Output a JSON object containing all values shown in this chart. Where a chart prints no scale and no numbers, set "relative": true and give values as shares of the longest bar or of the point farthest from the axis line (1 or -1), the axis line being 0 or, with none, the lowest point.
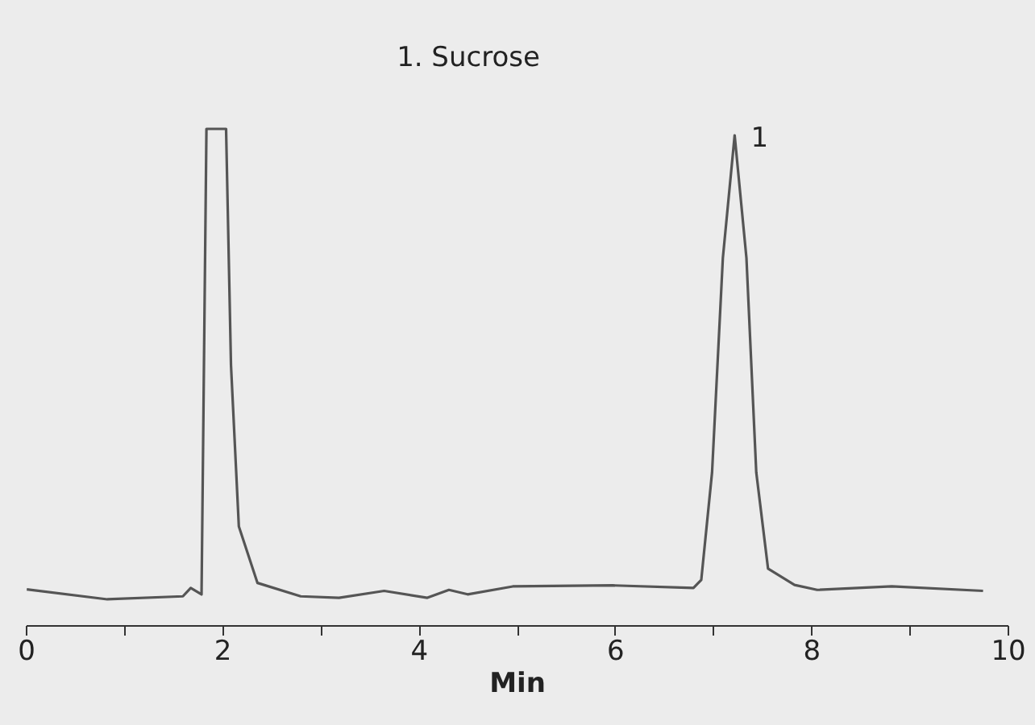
{
  "chart_data": {
    "type": "line",
    "title": "1.   Sucrose",
    "xlabel": "Min",
    "relative": true,
    "x": [
      0.01,
      0.83,
      1.6,
      1.68,
      1.79,
      1.84,
      2.04,
      2.09,
      2.17,
      2.36,
      2.8,
      3.19,
      3.65,
      4.09,
      4.31,
      4.5,
      4.96,
      5.98,
      6.8,
      6.88,
      6.99,
      7.1,
      7.22,
      7.34,
      7.44,
      7.56,
      7.83,
      8.06,
      8.82,
      9.75
    ],
    "series": [
      {
        "color": "#555555",
        "values": [
          0.072,
          0.052,
          0.058,
          0.075,
          0.062,
          1.0,
          1.0,
          0.524,
          0.199,
          0.085,
          0.058,
          0.055,
          0.069,
          0.055,
          0.071,
          0.062,
          0.078,
          0.08,
          0.075,
          0.091,
          0.308,
          0.74,
          0.987,
          0.74,
          0.308,
          0.114,
          0.081,
          0.071,
          0.078,
          0.069
        ]
      }
    ],
    "xlim": [
      0,
      10
    ],
    "xticks": [
      0,
      {
        "value": 1,
        "label": null
      },
      2,
      {
        "value": 3,
        "label": null
      },
      4,
      {
        "value": 5,
        "label": null
      },
      6,
      {
        "value": 7,
        "label": null
      },
      8,
      {
        "value": 9,
        "label": null
      },
      10
    ],
    "annotations": [
      {
        "text": "1",
        "x": 7.22,
        "y": 0.987
      }
    ],
    "grid": false,
    "marker": "none",
    "line_style": "solid"
  }
}
